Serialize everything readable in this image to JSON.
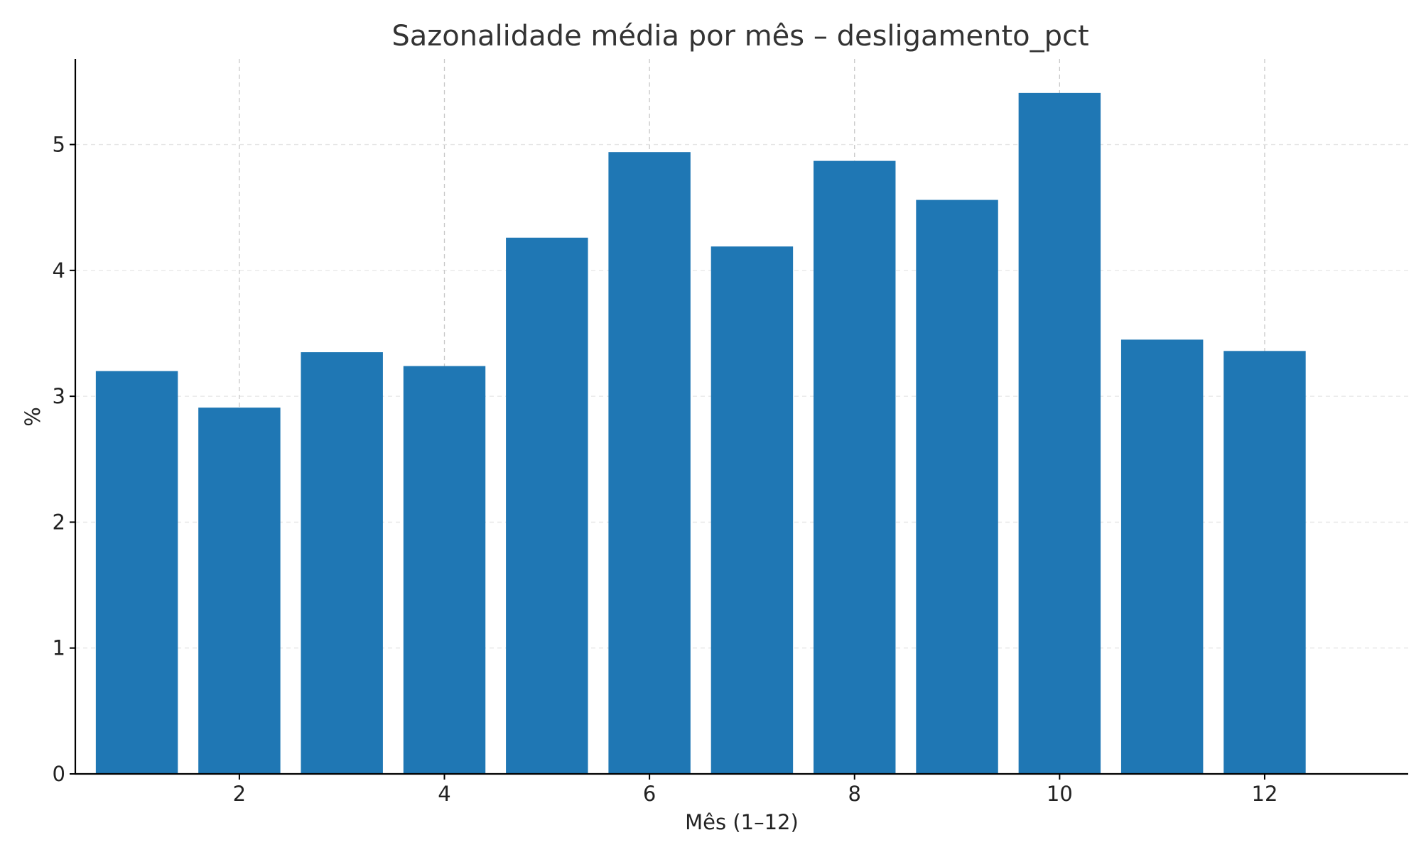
{
  "chart_data": {
    "type": "bar",
    "title": "Sazonalidade média por mês – desligamento_pct",
    "xlabel": "Mês (1–12)",
    "ylabel": "%",
    "categories": [
      1,
      2,
      3,
      4,
      5,
      6,
      7,
      8,
      9,
      10,
      11,
      12
    ],
    "values": [
      3.2,
      2.91,
      3.35,
      3.24,
      4.26,
      4.94,
      4.19,
      4.87,
      4.56,
      5.41,
      3.45,
      3.36
    ],
    "xticks": [
      "2",
      "4",
      "6",
      "8",
      "10",
      "12"
    ],
    "xtick_values": [
      2,
      4,
      6,
      8,
      10,
      12
    ],
    "yticks": [
      "0",
      "1",
      "2",
      "3",
      "4",
      "5"
    ],
    "ytick_values": [
      0,
      1,
      2,
      3,
      4,
      5
    ],
    "xlim": [
      0.4,
      13.4
    ],
    "ylim": [
      0,
      5.68
    ],
    "grid": true,
    "legend": "none",
    "bar_color": "#1f77b4"
  }
}
